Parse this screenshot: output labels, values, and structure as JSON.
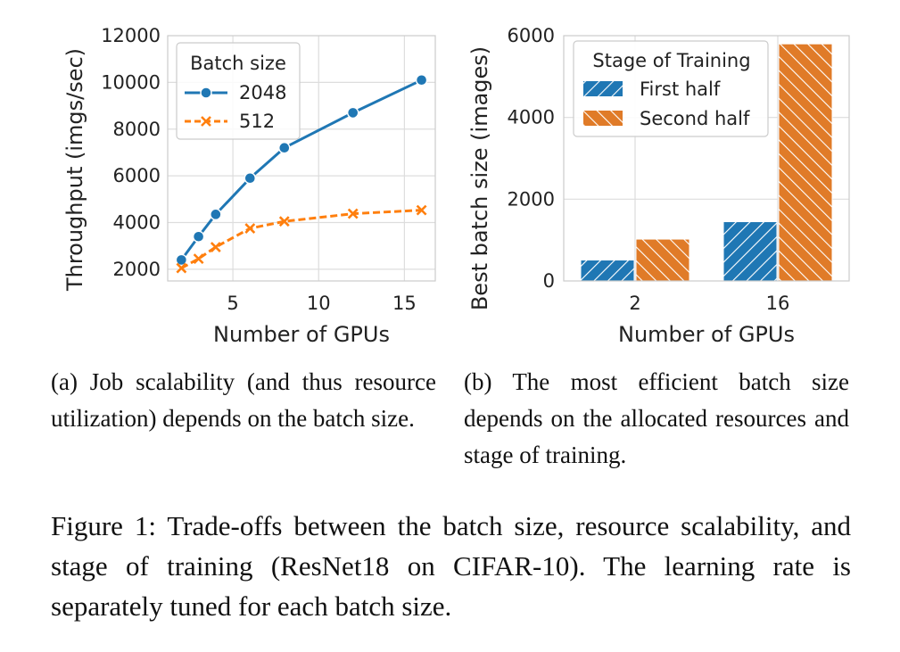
{
  "chart_data": [
    {
      "type": "line",
      "xlabel": "Number of GPUs",
      "ylabel": "Throughput (imgs/sec)",
      "xlim": [
        1.2,
        16.8
      ],
      "ylim": [
        1500,
        12000
      ],
      "xticks": [
        5,
        10,
        15
      ],
      "yticks": [
        2000,
        4000,
        6000,
        8000,
        10000,
        12000
      ],
      "grid": true,
      "legend": {
        "title": "Batch size",
        "placement": "top-left"
      },
      "series": [
        {
          "name": "2048",
          "color": "#1f77b4",
          "marker": "circle",
          "linestyle": "solid",
          "x": [
            2,
            3,
            4,
            6,
            8,
            12,
            16
          ],
          "y": [
            2400,
            3400,
            4350,
            5900,
            7200,
            8700,
            10100
          ]
        },
        {
          "name": "512",
          "color": "#ff7f0e",
          "marker": "x",
          "linestyle": "dashed",
          "x": [
            2,
            3,
            4,
            6,
            8,
            12,
            16
          ],
          "y": [
            2050,
            2450,
            2950,
            3750,
            4050,
            4380,
            4530
          ]
        }
      ]
    },
    {
      "type": "bar",
      "xlabel": "Number of GPUs",
      "ylabel": "Best batch size (images)",
      "categories": [
        "2",
        "16"
      ],
      "ylim": [
        0,
        6000
      ],
      "yticks": [
        0,
        2000,
        4000,
        6000
      ],
      "grid": true,
      "legend": {
        "title": "Stage of Training",
        "placement": "top-left"
      },
      "series": [
        {
          "name": "First half",
          "color": "#1f77b4",
          "hatch": "//",
          "values": [
            512,
            1450
          ]
        },
        {
          "name": "Second half",
          "color": "#e07b28",
          "hatch": "\\\\",
          "values": [
            1024,
            5800
          ]
        }
      ]
    }
  ],
  "captions": {
    "a": "(a) Job scalability (and thus resource utilization) depends on the batch size.",
    "b": "(b) The most efficient batch size depends on the allocated resources and stage of training.",
    "figure": "Figure 1: Trade-offs between the batch size, resource scalability, and stage of training (ResNet18 on CIFAR-10). The learning rate is separately tuned for each batch size."
  }
}
